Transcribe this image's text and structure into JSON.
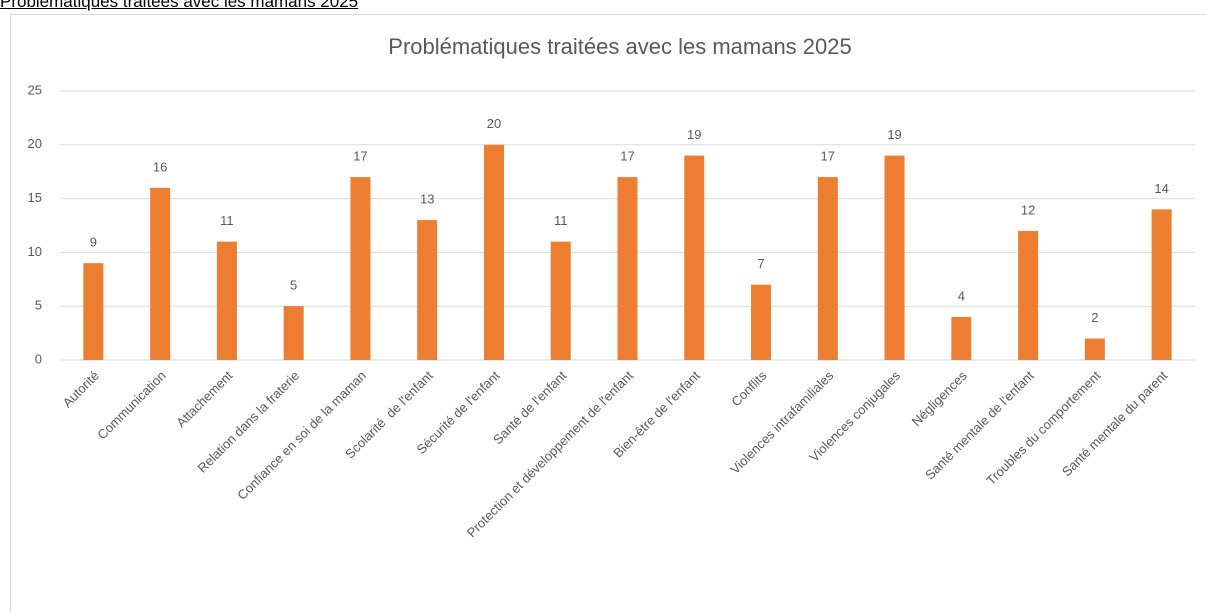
{
  "header": {
    "link": "Problématiques traitées avec les mamans 2025"
  },
  "chart_data": {
    "type": "bar",
    "title": "Problématiques traitées avec les mamans 2025",
    "categories": [
      "Autorité",
      "Communication",
      "Attachement",
      "Relation dans la fraterie",
      "Confiance en soi de la maman",
      "Scolarité  de l'enfant",
      "Sécurité de l'enfant",
      "Santé de l'enfant",
      "Protection et développement de l'enfant",
      "Bien-être de l'enfant",
      "Conflits",
      "Violences intrafamiliales",
      "Violences conjugales",
      "Négligences",
      "Santé mentale de l'enfant",
      "Troubles du comportement",
      "Santé mentale du parent"
    ],
    "values": [
      9,
      16,
      11,
      5,
      17,
      13,
      20,
      11,
      17,
      19,
      7,
      17,
      19,
      4,
      12,
      2,
      14
    ],
    "color": "#ed7d31",
    "ylim": [
      0,
      25
    ],
    "yticks": [
      0,
      5,
      10,
      15,
      20,
      25
    ],
    "grid": true
  }
}
